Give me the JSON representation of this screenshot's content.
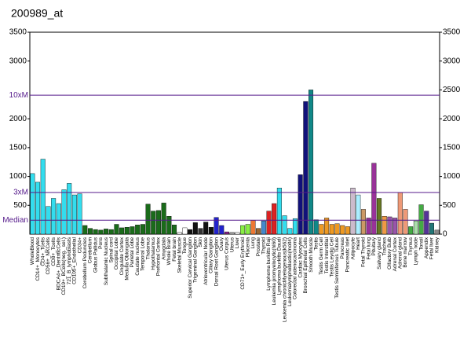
{
  "chart_data": {
    "type": "bar",
    "title": "200989_at",
    "categories": [
      "WholeBlood",
      "CD14+_Monocytes",
      "CD4+_Tcells",
      "CD56+_NKCells",
      "CD8+_Tcells",
      "BDCA4+_DentriticCells",
      "CD19+_BCells(neg._sel.)",
      "721_B_lymphoblasts",
      "CD105+_Endothelial",
      "CD34+",
      "Cerebellum Peduncles",
      "Cerebellum",
      "Globus Pallidus",
      "Pons",
      "Subthalamic Nucleus",
      "Spinal cord",
      "Occipital Lobe",
      "Cingulate Cortex",
      "Medulla Oblongata",
      "Parietal Lobe",
      "Caudate nucleus",
      "Temporal Lobe",
      "Thalamus",
      "Hypothalamus",
      "Prefrontal Cortex",
      "Amygdala",
      "Whole Brain",
      "Fetal brain",
      "Skeletal Muscle",
      "Tongue",
      "Superior Cervical Ganglion",
      "Trigeminal Ganglion",
      "Skin",
      "Atrioventricular Node",
      "Ciliary Ganglion",
      "Dorsal Root Ganglion",
      "Ovary",
      "Uterus Corpus",
      "Uterus",
      "Liver",
      "CD71+_Early Erythroid",
      "Placenta",
      "Lung",
      "Prostate",
      "Thyroid",
      "Lymphoma burkitts Raji",
      "Leukemia promyelocytic(hl60)",
      "Lymphoma burkitts Daudi",
      "Leukemia chronicMyelogenous(k562)",
      "Leukemialymphoblastic(molt4)",
      "Colorectal adenocarcinoma",
      "Cardiac Myocytes",
      "Bronchial Epithelial Cells",
      "Smooth Muscle",
      "Testis",
      "Testis Germ Cell",
      "Testis Interstitial",
      "Testis Leydig Cell",
      "Testis Seminiferous Tubule",
      "Pancreas",
      "Pancreatic Islet",
      "Adipocyte",
      "Heart",
      "Fetal Thyroid",
      "Fetal lung",
      "Pituitary",
      "Salivary gland",
      "Trachea",
      "Olfactory Bulb",
      "Adrenal Cortex",
      "Adrenal gland",
      "Bone marrow",
      "Thymus",
      "Lymph node",
      "Tonsil",
      "Appendix",
      "Fetal liver",
      "Kidney"
    ],
    "values": [
      1050,
      900,
      1300,
      480,
      620,
      530,
      770,
      880,
      680,
      700,
      150,
      100,
      80,
      70,
      90,
      80,
      170,
      110,
      120,
      130,
      160,
      170,
      520,
      400,
      410,
      540,
      310,
      160,
      30,
      110,
      80,
      200,
      100,
      210,
      120,
      290,
      150,
      40,
      30,
      30,
      150,
      170,
      240,
      100,
      230,
      400,
      530,
      800,
      320,
      100,
      270,
      1030,
      2300,
      2500,
      250,
      170,
      280,
      170,
      180,
      150,
      130,
      800,
      680,
      430,
      280,
      1230,
      620,
      310,
      300,
      280,
      720,
      430,
      130,
      230,
      510,
      400,
      190,
      70
    ],
    "colors": [
      "#33ddee",
      "#33ddee",
      "#33ddee",
      "#33ddee",
      "#33ddee",
      "#33ddee",
      "#33ddee",
      "#33ddee",
      "#33ddee",
      "#33ddee",
      "#1a6b1a",
      "#1a6b1a",
      "#1a6b1a",
      "#1a6b1a",
      "#1a6b1a",
      "#1a6b1a",
      "#1a6b1a",
      "#1a6b1a",
      "#1a6b1a",
      "#1a6b1a",
      "#1a6b1a",
      "#1a6b1a",
      "#1a6b1a",
      "#1a6b1a",
      "#1a6b1a",
      "#1a6b1a",
      "#1a6b1a",
      "#1a6b1a",
      "#ffffff",
      "#ffffff",
      "#111111",
      "#111111",
      "#333333",
      "#111111",
      "#111111",
      "#2222cc",
      "#2222cc",
      "#882288",
      "#aaaaaa",
      "#ffffff",
      "#88ee44",
      "#88ee44",
      "#ee7733",
      "#996633",
      "#4488cc",
      "#dd2222",
      "#dd2222",
      "#33ddee",
      "#33ddee",
      "#33ddee",
      "#33ddee",
      "#11117a",
      "#11117a",
      "#118888",
      "#118888",
      "#ee9922",
      "#ee9922",
      "#ee9922",
      "#ee9922",
      "#ee9922",
      "#ee9922",
      "#ccbbcc",
      "#aaeeff",
      "#cc9966",
      "#993399",
      "#993399",
      "#667722",
      "#ee9944",
      "#9955aa",
      "#9955aa",
      "#ee9977",
      "#ee9977",
      "#44aa44",
      "#aaddaa",
      "#44aa44",
      "#553399",
      "#227777",
      "#888888"
    ],
    "ylim": [
      0,
      3500
    ],
    "yticks": [
      500,
      1000,
      1500,
      2000,
      3000,
      3500
    ],
    "y2lim": [
      0,
      3500
    ],
    "y2ticks": [
      0,
      500,
      1000,
      1500,
      2000,
      2500,
      3000,
      3500
    ],
    "reference_lines": [
      {
        "label": "10xM",
        "value": 2408
      },
      {
        "label": "3xM",
        "value": 722
      },
      {
        "label": "Median",
        "value": 241
      }
    ]
  }
}
